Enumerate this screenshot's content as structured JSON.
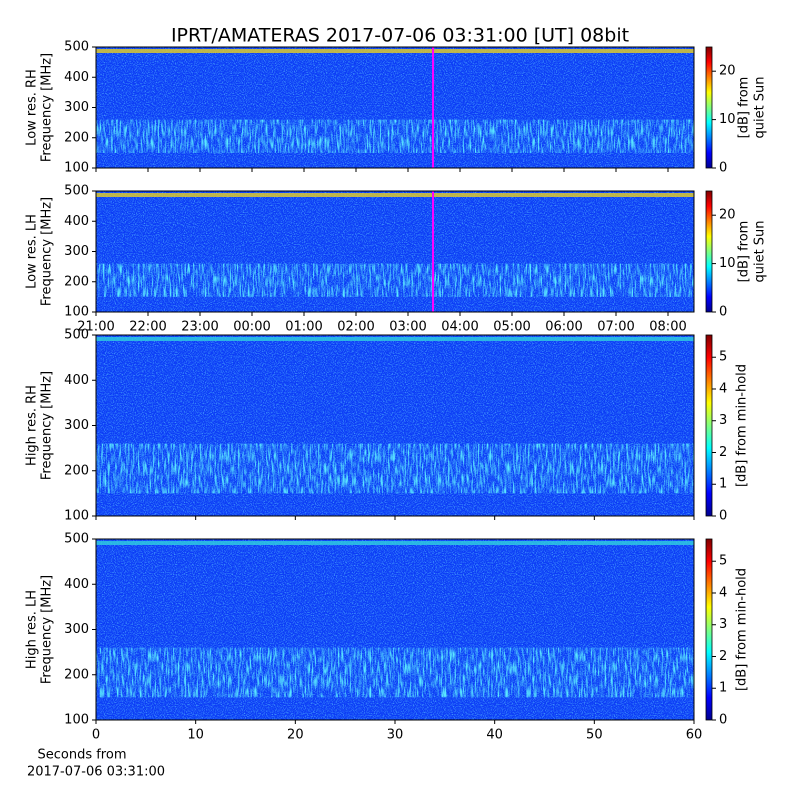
{
  "chart_data": [
    {
      "type": "heatmap",
      "title": "IPRT/AMATERAS 2017-07-06 03:31:00 [UT]   08bit",
      "ylabel": [
        "Low res. RH",
        "Frequency [MHz]"
      ],
      "ylim": [
        100,
        500
      ],
      "yticks": [
        100,
        200,
        300,
        400,
        500
      ],
      "xlim": [
        21,
        32.5
      ],
      "xticks": [
        {
          "value": 21,
          "label": "21:00"
        },
        {
          "value": 22,
          "label": "22:00"
        },
        {
          "value": 23,
          "label": "23:00"
        },
        {
          "value": 24,
          "label": "00:00"
        },
        {
          "value": 25,
          "label": "01:00"
        },
        {
          "value": 26,
          "label": "02:00"
        },
        {
          "value": 27,
          "label": "03:00"
        },
        {
          "value": 28,
          "label": "04:00"
        },
        {
          "value": 29,
          "label": "05:00"
        },
        {
          "value": 30,
          "label": "06:00"
        },
        {
          "value": 31,
          "label": "07:00"
        },
        {
          "value": 32,
          "label": "08:00"
        }
      ],
      "show_xtick_labels": false,
      "colormap": "jet",
      "clim": [
        0,
        25
      ],
      "cticks": [
        0,
        10,
        20
      ],
      "clabel": [
        "[dB] from",
        "quiet Sun"
      ]
    },
    {
      "type": "heatmap",
      "ylabel": [
        "Low res. LH",
        "Frequency [MHz]"
      ],
      "ylim": [
        100,
        500
      ],
      "yticks": [
        100,
        200,
        300,
        400,
        500
      ],
      "xlim": [
        21,
        32.5
      ],
      "xticks": [
        {
          "value": 21,
          "label": "21:00"
        },
        {
          "value": 22,
          "label": "22:00"
        },
        {
          "value": 23,
          "label": "23:00"
        },
        {
          "value": 24,
          "label": "00:00"
        },
        {
          "value": 25,
          "label": "01:00"
        },
        {
          "value": 26,
          "label": "02:00"
        },
        {
          "value": 27,
          "label": "03:00"
        },
        {
          "value": 28,
          "label": "04:00"
        },
        {
          "value": 29,
          "label": "05:00"
        },
        {
          "value": 30,
          "label": "06:00"
        },
        {
          "value": 31,
          "label": "07:00"
        },
        {
          "value": 32,
          "label": "08:00"
        }
      ],
      "show_xtick_labels": true,
      "colormap": "jet",
      "clim": [
        0,
        25
      ],
      "cticks": [
        0,
        10,
        20
      ],
      "clabel": [
        "[dB] from",
        "quiet Sun"
      ]
    },
    {
      "type": "heatmap",
      "ylabel": [
        "High res. RH",
        "Frequency [MHz]"
      ],
      "ylim": [
        100,
        500
      ],
      "yticks": [
        100,
        200,
        300,
        400,
        500
      ],
      "xlim": [
        0,
        60
      ],
      "xticks": [
        0,
        10,
        20,
        30,
        40,
        50,
        60
      ],
      "show_xtick_labels": false,
      "colormap": "jet",
      "clim": [
        0,
        5.7
      ],
      "cticks": [
        0,
        1,
        2,
        3,
        4,
        5
      ],
      "clabel": [
        "[dB] from min-hold"
      ]
    },
    {
      "type": "heatmap",
      "ylabel": [
        "High res. LH",
        "Frequency [MHz]"
      ],
      "ylim": [
        100,
        500
      ],
      "yticks": [
        100,
        200,
        300,
        400,
        500
      ],
      "xlim": [
        0,
        60
      ],
      "xticks": [
        0,
        10,
        20,
        30,
        40,
        50,
        60
      ],
      "show_xtick_labels": true,
      "xlabel": [
        "Seconds from",
        "2017-07-06 03:31:00"
      ],
      "colormap": "jet",
      "clim": [
        0,
        5.7
      ],
      "cticks": [
        0,
        1,
        2,
        3,
        4,
        5
      ],
      "clabel": [
        "[dB] from min-hold"
      ]
    }
  ]
}
